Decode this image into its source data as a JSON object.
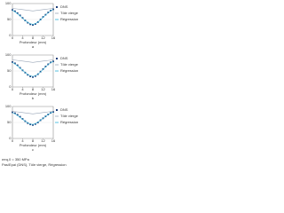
{
  "chart_data": [
    {
      "type": "scatter",
      "panel_label": "a",
      "x_label": "Profondeur (mm)",
      "x": [
        0,
        1,
        2,
        3,
        4,
        5,
        6,
        7,
        8,
        9,
        10,
        11,
        12,
        13,
        14,
        15,
        16
      ],
      "xlim": [
        0,
        16
      ],
      "xticks": [
        0,
        4,
        8,
        12,
        16
      ],
      "ylim": [
        0,
        100
      ],
      "yticks": [
        0,
        50,
        100
      ],
      "grid": true,
      "series": [
        {
          "name": "DNS",
          "color": "#1f3f7a",
          "style": "markers",
          "values": [
            80,
            76,
            70,
            63,
            55,
            47,
            40,
            35,
            33,
            36,
            42,
            50,
            58,
            65,
            72,
            78,
            82
          ]
        },
        {
          "name": "Tôle vierge",
          "color": "#9aa7b8",
          "style": "line",
          "values": [
            85,
            84,
            83,
            82,
            81,
            80,
            79,
            78,
            77,
            78,
            79,
            80,
            81,
            82,
            83,
            84,
            85
          ]
        },
        {
          "name": "Régression",
          "color": "#2ab0d8",
          "style": "line",
          "values": [
            79,
            74,
            68,
            61,
            54,
            47,
            41,
            37,
            35,
            37,
            42,
            49,
            57,
            64,
            71,
            77,
            82
          ]
        }
      ]
    },
    {
      "type": "scatter",
      "panel_label": "b",
      "x_label": "Profondeur (mm)",
      "x": [
        0,
        1,
        2,
        3,
        4,
        5,
        6,
        7,
        8,
        9,
        10,
        11,
        12,
        13,
        14,
        15,
        16
      ],
      "xlim": [
        0,
        16
      ],
      "xticks": [
        0,
        4,
        8,
        12,
        16
      ],
      "ylim": [
        0,
        100
      ],
      "yticks": [
        0,
        50,
        100
      ],
      "grid": true,
      "series": [
        {
          "name": "DNS",
          "color": "#1f3f7a",
          "style": "markers",
          "values": [
            78,
            74,
            68,
            60,
            52,
            45,
            38,
            33,
            31,
            34,
            40,
            48,
            56,
            64,
            71,
            77,
            80
          ]
        },
        {
          "name": "Tôle vierge",
          "color": "#9aa7b8",
          "style": "line",
          "values": [
            85,
            84,
            83,
            82,
            81,
            80,
            79,
            78,
            77,
            78,
            79,
            80,
            81,
            82,
            83,
            84,
            85
          ]
        },
        {
          "name": "Régression",
          "color": "#2ab0d8",
          "style": "line",
          "values": [
            77,
            72,
            66,
            59,
            52,
            45,
            39,
            35,
            33,
            35,
            40,
            47,
            55,
            63,
            70,
            76,
            80
          ]
        }
      ]
    },
    {
      "type": "scatter",
      "panel_label": "c",
      "x_label": "Profondeur (mm)",
      "x": [
        0,
        1,
        2,
        3,
        4,
        5,
        6,
        7,
        8,
        9,
        10,
        11,
        12,
        13,
        14,
        15,
        16
      ],
      "xlim": [
        0,
        16
      ],
      "xticks": [
        0,
        4,
        8,
        12,
        16
      ],
      "ylim": [
        0,
        100
      ],
      "yticks": [
        0,
        50,
        100
      ],
      "grid": true,
      "series": [
        {
          "name": "DNS",
          "color": "#1f3f7a",
          "style": "markers",
          "values": [
            82,
            79,
            74,
            68,
            61,
            54,
            48,
            44,
            42,
            45,
            50,
            57,
            63,
            69,
            75,
            80,
            83
          ]
        },
        {
          "name": "Tôle vierge",
          "color": "#9aa7b8",
          "style": "line",
          "values": [
            85,
            84,
            83,
            82,
            81,
            80,
            79,
            78,
            77,
            78,
            79,
            80,
            81,
            82,
            83,
            84,
            85
          ]
        },
        {
          "name": "Régression",
          "color": "#2ab0d8",
          "style": "line",
          "values": [
            81,
            77,
            72,
            66,
            60,
            54,
            49,
            45,
            44,
            46,
            51,
            57,
            63,
            69,
            75,
            80,
            83
          ]
        }
      ]
    }
  ],
  "footer": [
    "σeq,0 = 350 MPa",
    "Pas/Epai (DNS), Tôle vierge, Régression"
  ]
}
